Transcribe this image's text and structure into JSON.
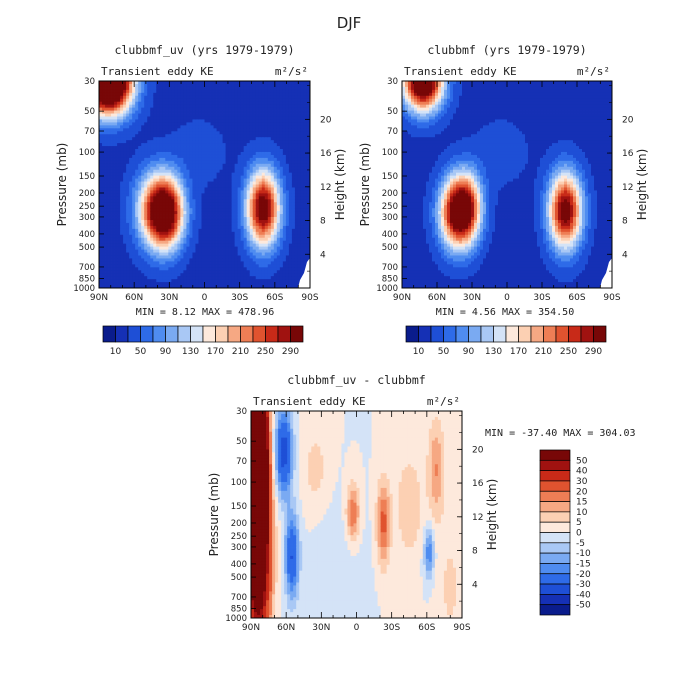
{
  "figure_title": "DJF",
  "chart_data": [
    {
      "type": "heatmap",
      "title": "clubbmf_uv (yrs 1979-1979)",
      "left_label": "Transient eddy KE",
      "units": "m²/s²",
      "ylabel": "Pressure (mb)",
      "ylabel_right": "Height (km)",
      "x_ticks": [
        "90N",
        "60N",
        "30N",
        "0",
        "30S",
        "60S",
        "90S"
      ],
      "y_ticks": [
        "30",
        "50",
        "70",
        "100",
        "150",
        "200",
        "250",
        "300",
        "400",
        "500",
        "700",
        "850",
        "1000"
      ],
      "right_ticks": [
        "20",
        "16",
        "12",
        "8",
        "4"
      ],
      "stats": "MIN =    8.12   MAX =  478.96",
      "colorbar_labels": [
        "10",
        "50",
        "90",
        "130",
        "170",
        "210",
        "250",
        "290"
      ],
      "colorbar_colors": [
        "#0a1c8c",
        "#1530b5",
        "#1e4fd6",
        "#2e6be8",
        "#4f8cf0",
        "#7aaaf2",
        "#a9c8f5",
        "#d4e3f7",
        "#fde9dc",
        "#fcd0b3",
        "#f6a883",
        "#ee7e55",
        "#e0532f",
        "#c82a18",
        "#a01210",
        "#780707"
      ],
      "blobs": [
        {
          "lat": 82,
          "p": 30,
          "amp": 480,
          "slat": 14,
          "sz": 0.38
        },
        {
          "lat": 33,
          "p": 280,
          "amp": 300,
          "slat": 11,
          "sz": 0.42
        },
        {
          "lat": 45,
          "p": 260,
          "amp": 120,
          "slat": 12,
          "sz": 0.45
        },
        {
          "lat": -50,
          "p": 260,
          "amp": 300,
          "slat": 10,
          "sz": 0.45
        }
      ]
    },
    {
      "type": "heatmap",
      "title": "clubbmf (yrs 1979-1979)",
      "left_label": "Transient eddy KE",
      "units": "m²/s²",
      "ylabel": "Pressure (mb)",
      "ylabel_right": "Height (km)",
      "x_ticks": [
        "90N",
        "60N",
        "30N",
        "0",
        "30S",
        "60S",
        "90S"
      ],
      "y_ticks": [
        "30",
        "50",
        "70",
        "100",
        "150",
        "200",
        "250",
        "300",
        "400",
        "500",
        "700",
        "850",
        "1000"
      ],
      "right_ticks": [
        "20",
        "16",
        "12",
        "8",
        "4"
      ],
      "stats": "MIN =    4.56   MAX =  354.50",
      "colorbar_labels": [
        "10",
        "50",
        "90",
        "130",
        "170",
        "210",
        "250",
        "290"
      ],
      "colorbar_colors": [
        "#0a1c8c",
        "#1530b5",
        "#1e4fd6",
        "#2e6be8",
        "#4f8cf0",
        "#7aaaf2",
        "#a9c8f5",
        "#d4e3f7",
        "#fde9dc",
        "#fcd0b3",
        "#f6a883",
        "#ee7e55",
        "#e0532f",
        "#c82a18",
        "#a01210",
        "#780707"
      ],
      "blobs": [
        {
          "lat": 72,
          "p": 30,
          "amp": 355,
          "slat": 12,
          "sz": 0.35
        },
        {
          "lat": 42,
          "p": 280,
          "amp": 300,
          "slat": 11,
          "sz": 0.42
        },
        {
          "lat": 33,
          "p": 240,
          "amp": 110,
          "slat": 9,
          "sz": 0.4
        },
        {
          "lat": -50,
          "p": 270,
          "amp": 295,
          "slat": 10,
          "sz": 0.45
        }
      ]
    },
    {
      "type": "heatmap",
      "title": "clubbmf_uv - clubbmf",
      "left_label": "Transient eddy KE",
      "units": "m²/s²",
      "ylabel": "Pressure (mb)",
      "ylabel_right": "Height (km)",
      "x_ticks": [
        "90N",
        "60N",
        "30N",
        "0",
        "30S",
        "60S",
        "90S"
      ],
      "y_ticks": [
        "30",
        "50",
        "70",
        "100",
        "150",
        "200",
        "250",
        "300",
        "400",
        "500",
        "700",
        "850",
        "1000"
      ],
      "right_ticks": [
        "20",
        "16",
        "12",
        "8",
        "4"
      ],
      "stats": "MIN = -37.40   MAX = 304.03",
      "colorbar_labels": [
        "50",
        "40",
        "30",
        "20",
        "15",
        "10",
        "5",
        "0",
        "-5",
        "-10",
        "-15",
        "-20",
        "-30",
        "-40",
        "-50"
      ],
      "colorbar_colors": [
        "#780707",
        "#a01210",
        "#c82a18",
        "#e0532f",
        "#ee7e55",
        "#f6a883",
        "#fcd0b3",
        "#fde9dc",
        "#d4e3f7",
        "#a9c8f5",
        "#7aaaf2",
        "#4f8cf0",
        "#2e6be8",
        "#1e4fd6",
        "#1530b5",
        "#0a1c8c"
      ],
      "blobs": [
        {
          "lat": 86,
          "p": 60,
          "amp": 300,
          "slat": 5,
          "sz": 1.3
        },
        {
          "lat": 80,
          "p": 300,
          "amp": 40,
          "slat": 6,
          "sz": 1.2
        },
        {
          "lat": 62,
          "p": 60,
          "amp": -35,
          "slat": 5,
          "sz": 0.5
        },
        {
          "lat": 55,
          "p": 350,
          "amp": -30,
          "slat": 4,
          "sz": 0.5
        },
        {
          "lat": 35,
          "p": 80,
          "amp": 7,
          "slat": 8,
          "sz": 0.5
        },
        {
          "lat": 3,
          "p": 170,
          "amp": 20,
          "slat": 4,
          "sz": 0.35
        },
        {
          "lat": -23,
          "p": 200,
          "amp": 22,
          "slat": 4,
          "sz": 0.5
        },
        {
          "lat": -45,
          "p": 150,
          "amp": 10,
          "slat": 8,
          "sz": 0.6
        },
        {
          "lat": -68,
          "p": 80,
          "amp": 15,
          "slat": 5,
          "sz": 0.6
        },
        {
          "lat": -62,
          "p": 330,
          "amp": -20,
          "slat": 3,
          "sz": 0.3
        },
        {
          "lat": -80,
          "p": 600,
          "amp": 6,
          "slat": 8,
          "sz": 0.8
        },
        {
          "lat": 15,
          "p": 500,
          "amp": -4,
          "slat": 15,
          "sz": 0.8
        }
      ]
    }
  ]
}
